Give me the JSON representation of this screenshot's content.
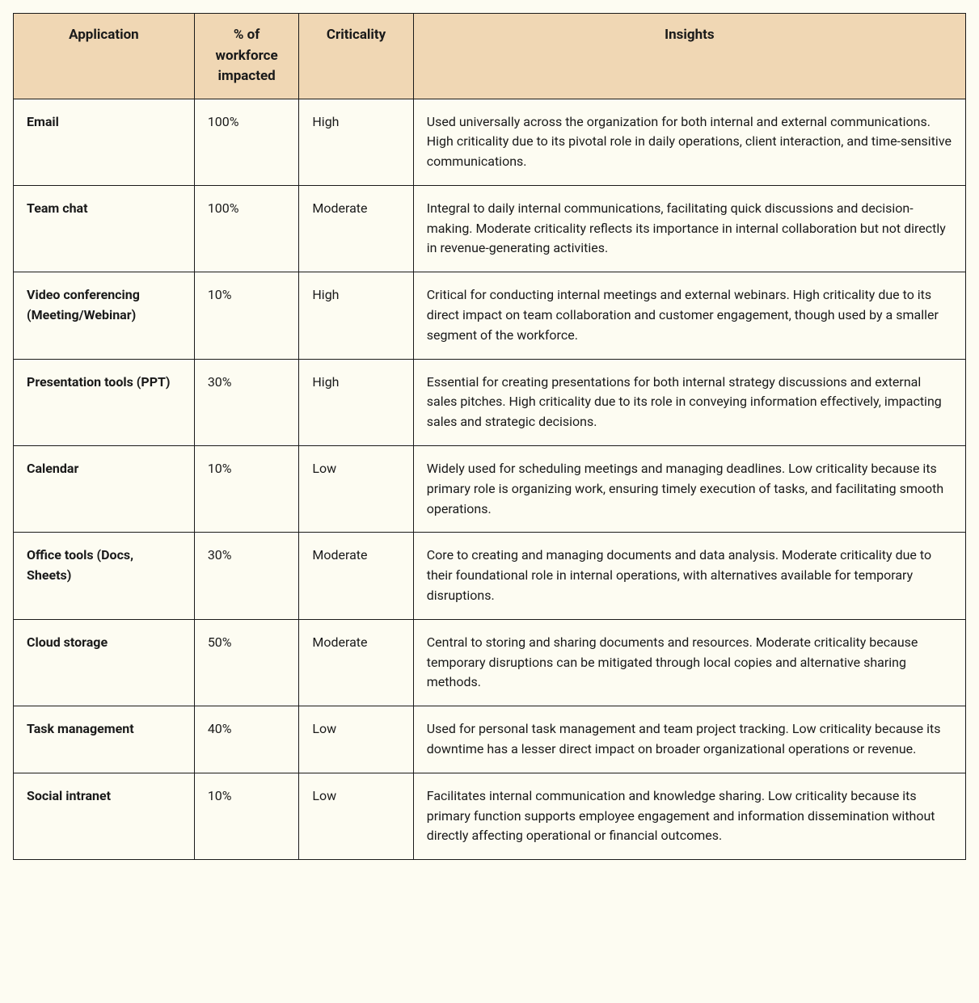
{
  "table": {
    "headers": {
      "application": "Application",
      "pct": "% of workforce impacted",
      "criticality": "Criticality",
      "insights": "Insights"
    },
    "rows": [
      {
        "application": "Email",
        "pct": "100%",
        "criticality": "High",
        "insights": "Used universally across the organization for both internal and external communications. High criticality due to its pivotal role in daily operations, client interaction, and time-sensitive communications."
      },
      {
        "application": "Team chat",
        "pct": "100%",
        "criticality": "Moderate",
        "insights": "Integral to daily internal communications, facilitating quick discussions and decision-making. Moderate criticality reflects its importance in internal collaboration but not directly in revenue-generating activities."
      },
      {
        "application": "Video conferencing (Meeting/Webinar)",
        "pct": "10%",
        "criticality": "High",
        "insights": "Critical for conducting internal meetings and external webinars. High criticality due to its direct impact on team collaboration and customer engagement, though used by a smaller segment of the workforce."
      },
      {
        "application": "Presentation tools (PPT)",
        "pct": "30%",
        "criticality": "High",
        "insights": "Essential for creating presentations for both internal strategy discussions and external sales pitches. High criticality due to its role in conveying information effectively, impacting sales and strategic decisions."
      },
      {
        "application": "Calendar",
        "pct": "10%",
        "criticality": "Low",
        "insights": "Widely used for scheduling meetings and managing deadlines. Low criticality because its primary role is organizing work, ensuring timely execution of tasks, and facilitating smooth operations."
      },
      {
        "application": "Office tools (Docs, Sheets)",
        "pct": "30%",
        "criticality": "Moderate",
        "insights": "Core to creating and managing documents and data analysis. Moderate criticality due to their foundational role in internal operations, with alternatives available for temporary disruptions."
      },
      {
        "application": "Cloud storage",
        "pct": "50%",
        "criticality": "Moderate",
        "insights": "Central to storing and sharing documents and resources. Moderate criticality because temporary disruptions can be mitigated through local copies and alternative sharing methods."
      },
      {
        "application": "Task management",
        "pct": "40%",
        "criticality": "Low",
        "insights": "Used for personal task management and team project tracking. Low criticality because its downtime has a lesser direct impact on broader organizational operations or revenue."
      },
      {
        "application": "Social intranet",
        "pct": "10%",
        "criticality": "Low",
        "insights": "Facilitates internal communication and knowledge sharing. Low criticality because its primary function supports employee engagement and information dissemination without directly affecting operational or financial outcomes."
      }
    ],
    "styling": {
      "header_bg": "#f0d7b4",
      "body_bg": "#fdfcf2",
      "border_color": "#1a1a1a",
      "text_color": "#1a1a1a",
      "header_font_weight": 700,
      "app_font_weight": 700,
      "font_size_header": 17,
      "font_size_body": 16
    }
  }
}
